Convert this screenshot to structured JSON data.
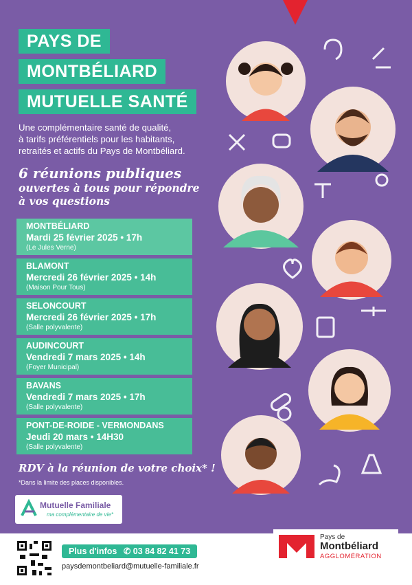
{
  "header": {
    "title_lines": [
      "PAYS DE",
      "MONTBÉLIARD",
      "MUTUELLE SANTÉ"
    ]
  },
  "intro_lines": [
    "Une complémentaire santé de qualité,",
    "à tarifs préférentiels pour les habitants,",
    "retraités et actifs du Pays de Montbéliard."
  ],
  "headline_lines": [
    "6 réunions publiques",
    "ouvertes à tous pour répondre",
    "à vos questions"
  ],
  "meetings": [
    {
      "city": "MONTBÉLIARD",
      "date": "Mardi 25 février 2025 • 17h",
      "place": "(Le Jules Verne)"
    },
    {
      "city": "BLAMONT",
      "date": "Mercredi 26 février 2025 • 14h",
      "place": "(Maison Pour Tous)"
    },
    {
      "city": "SELONCOURT",
      "date": "Mercredi 26 février 2025 • 17h",
      "place": "(Salle polyvalente)"
    },
    {
      "city": "AUDINCOURT",
      "date": "Vendredi 7 mars 2025 • 14h",
      "place": "(Foyer Municipal)"
    },
    {
      "city": "BAVANS",
      "date": "Vendredi 7 mars 2025 • 17h",
      "place": "(Salle polyvalente)"
    },
    {
      "city": "PONT-DE-ROIDE - VERMONDANS",
      "date": "Jeudi 20 mars • 14H30",
      "place": "(Salle polyvalente)"
    }
  ],
  "cta": "RDV à la réunion de votre choix* !",
  "note": "*Dans la limite des places disponibles.",
  "mutuelle_logo": {
    "name": "Mutuelle Familiale",
    "tagline": "ma complémentaire de vie*"
  },
  "footer": {
    "info_label": "Plus d'infos",
    "phone": "03 84 82 41 73",
    "email": "paysdemontbeliard@mutuelle-familiale.fr"
  },
  "agglo_logo": {
    "line1": "Pays de",
    "line2": "Montbéliard",
    "line3": "AGGLOMÉRATION"
  }
}
